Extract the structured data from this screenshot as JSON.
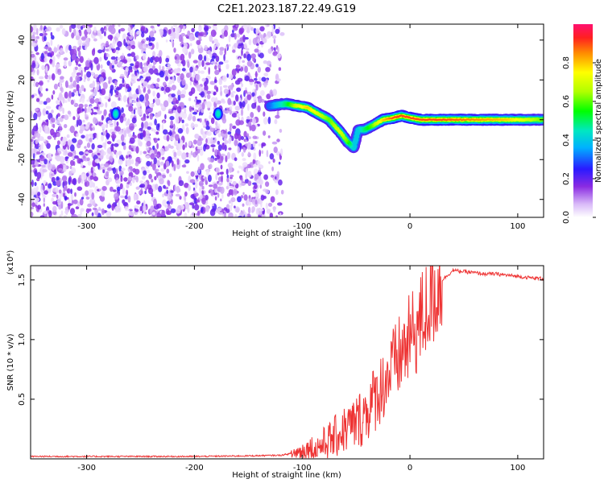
{
  "figure": {
    "title": "C2E1.2023.187.22.49.G19"
  },
  "chart_data": [
    {
      "type": "heatmap",
      "xlabel": "Height of straight line (km)",
      "ylabel": "Frequency (Hz)",
      "xlim": [
        -352,
        124
      ],
      "ylim": [
        -49,
        48
      ],
      "xticks": [
        -300,
        -200,
        -100,
        0,
        100
      ],
      "yticks": [
        -40,
        -20,
        0,
        20,
        40
      ],
      "colorbar": {
        "label": "Normalized spectral amplitude",
        "range": [
          0,
          1
        ],
        "ticks": [
          0.0,
          0.2,
          0.4,
          0.6,
          0.8
        ]
      },
      "signal_track": {
        "x": [
          -130,
          -115,
          -105,
          -95,
          -85,
          -75,
          -65,
          -58,
          -52,
          -48,
          -42,
          -35,
          -25,
          -15,
          -8,
          0,
          10,
          30,
          60,
          90,
          124
        ],
        "frequency": [
          7,
          8,
          7,
          6,
          3,
          0,
          -6,
          -11,
          -14,
          -5,
          -5,
          -3,
          0,
          1,
          2,
          1,
          0,
          0,
          0,
          0,
          0
        ],
        "peak_amplitude": [
          0.3,
          0.5,
          0.7,
          0.8,
          0.7,
          0.6,
          0.7,
          0.6,
          0.4,
          0.4,
          0.5,
          0.6,
          0.8,
          0.9,
          0.9,
          0.9,
          0.9,
          0.9,
          0.85,
          0.8,
          0.6
        ]
      },
      "noise_region_x": [
        -352,
        -118
      ]
    },
    {
      "type": "line",
      "xlabel": "Height of straight line (km)",
      "ylabel": "SNR (10 * v/v)",
      "y_multiplier": "(x10⁴)",
      "xlim": [
        -352,
        124
      ],
      "ylim": [
        0,
        1.62
      ],
      "xticks": [
        -300,
        -200,
        -100,
        0,
        100
      ],
      "yticks": [
        0.5,
        1.0,
        1.5
      ],
      "series": [
        {
          "color": "#ee3333",
          "x": [
            -352,
            -300,
            -250,
            -200,
            -150,
            -120,
            -100,
            -90,
            -80,
            -70,
            -60,
            -50,
            -40,
            -30,
            -20,
            -10,
            0,
            10,
            20,
            30,
            40,
            50,
            60,
            70,
            80,
            90,
            100,
            110,
            124
          ],
          "y": [
            0.02,
            0.02,
            0.02,
            0.02,
            0.025,
            0.03,
            0.06,
            0.09,
            0.12,
            0.18,
            0.25,
            0.3,
            0.4,
            0.55,
            0.7,
            0.85,
            1.0,
            1.15,
            1.35,
            1.5,
            1.58,
            1.57,
            1.56,
            1.55,
            1.55,
            1.54,
            1.53,
            1.52,
            1.51
          ]
        }
      ]
    }
  ]
}
